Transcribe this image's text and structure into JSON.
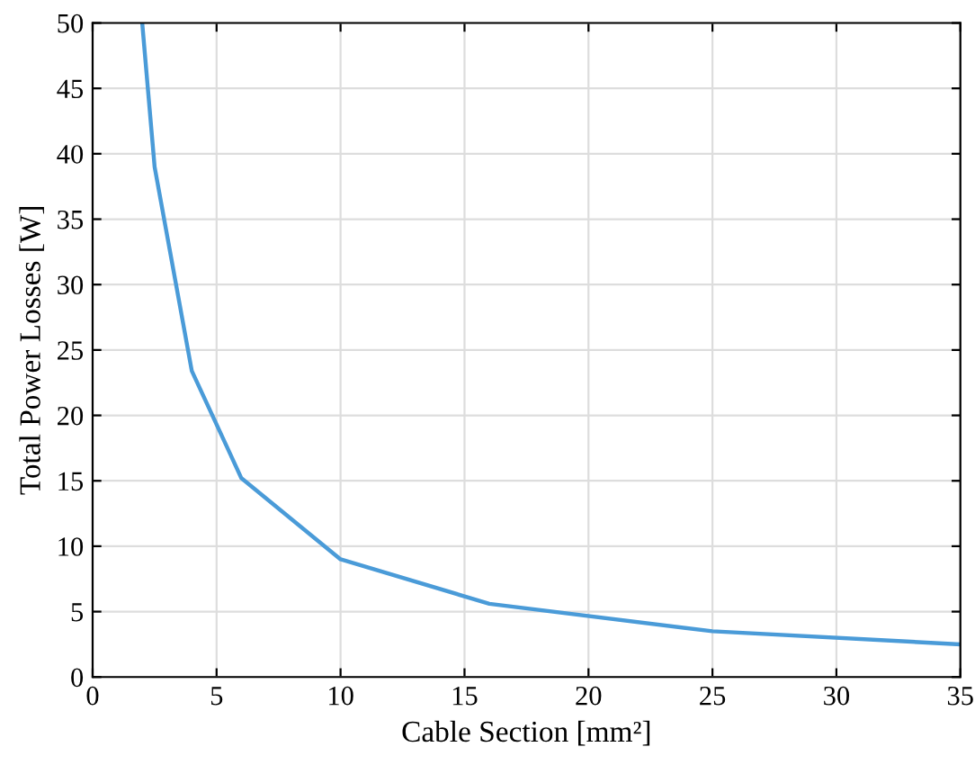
{
  "chart_data": {
    "type": "line",
    "xlabel": "Cable Section [mm²]",
    "ylabel": "Total Power Losses [W]",
    "x": [
      2,
      2.5,
      4,
      6,
      10,
      16,
      25,
      35
    ],
    "series": [
      {
        "color": "#4a9bd8",
        "values": [
          50,
          39,
          23.4,
          15.2,
          9,
          5.6,
          3.5,
          2.5
        ]
      }
    ],
    "xlim": [
      0,
      35
    ],
    "xticks": [
      0,
      5,
      10,
      15,
      20,
      25,
      30,
      35
    ],
    "ylim": [
      0,
      50
    ],
    "yticks": [
      0,
      5,
      10,
      15,
      20,
      25,
      30,
      35,
      40,
      45,
      50
    ],
    "grid": true,
    "legend": false,
    "marker": "none",
    "line_style": "solid"
  }
}
